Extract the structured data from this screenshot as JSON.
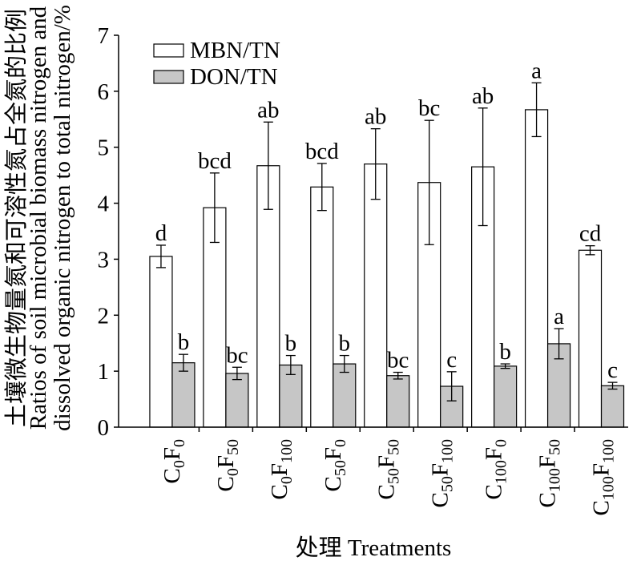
{
  "chart_data": {
    "type": "bar",
    "xlabel": "处理 Treatments",
    "ylabel": [
      "土壤微生物量氮和可溶性氮占全氮的比例",
      "Ratios of soil microbial biomass nitrogen and",
      "dissolved organic nitrogen to total nitrogen/%"
    ],
    "ylim": [
      0,
      7
    ],
    "yticks": [
      0,
      1,
      2,
      3,
      4,
      5,
      6,
      7
    ],
    "grid": false,
    "legend_position": "top-left",
    "categories": [
      "C0F0",
      "C0F50",
      "C0F100",
      "C50F0",
      "C50F50",
      "C50F100",
      "C100F0",
      "C100F50",
      "C100F100"
    ],
    "series": [
      {
        "name": "MBN/TN",
        "color": "#ffffff",
        "values": [
          3.05,
          3.92,
          4.67,
          4.29,
          4.7,
          4.37,
          4.65,
          5.67,
          3.16
        ],
        "errors": [
          0.2,
          0.62,
          0.78,
          0.42,
          0.63,
          1.11,
          1.05,
          0.48,
          0.08
        ],
        "letters": [
          "d",
          "bcd",
          "ab",
          "bcd",
          "ab",
          "bc",
          "ab",
          "a",
          "cd"
        ]
      },
      {
        "name": "DON/TN",
        "color": "#c6c6c6",
        "values": [
          1.15,
          0.96,
          1.11,
          1.13,
          0.92,
          0.73,
          1.09,
          1.49,
          0.74
        ],
        "errors": [
          0.15,
          0.11,
          0.17,
          0.15,
          0.06,
          0.26,
          0.04,
          0.27,
          0.06
        ],
        "letters": [
          "b",
          "bc",
          "b",
          "b",
          "bc",
          "c",
          "b",
          "a",
          "c"
        ]
      }
    ]
  }
}
